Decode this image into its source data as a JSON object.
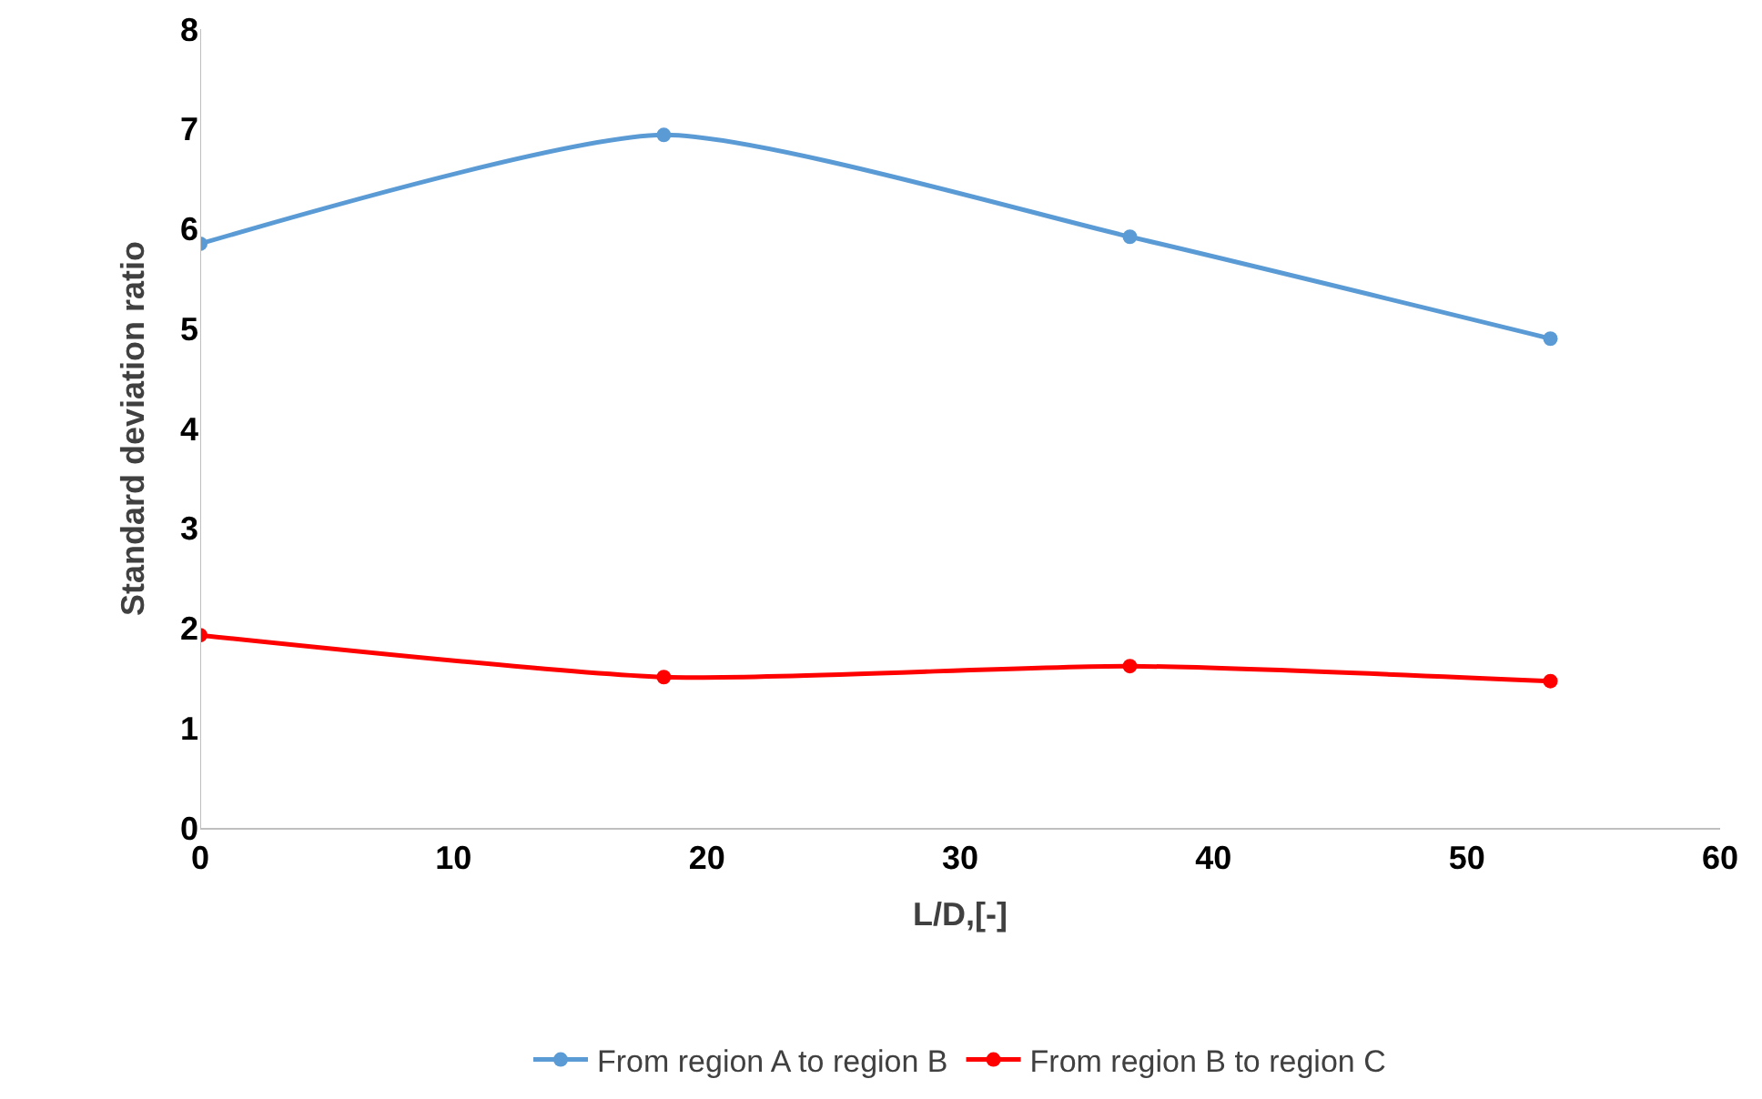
{
  "chart_data": {
    "type": "line",
    "xlabel": "L/D,[-]",
    "ylabel": "Standard deviation ratio",
    "x": [
      0,
      18.3,
      36.7,
      53.3
    ],
    "series": [
      {
        "name": "From region A to region B",
        "color": "#5b9bd5",
        "values": [
          5.85,
          6.94,
          5.92,
          4.9
        ]
      },
      {
        "name": "From region B to region C",
        "color": "#ff0000",
        "values": [
          1.93,
          1.51,
          1.62,
          1.47
        ]
      }
    ],
    "xlim": [
      0,
      60
    ],
    "xticks": [
      0,
      10,
      20,
      30,
      40,
      50,
      60
    ],
    "ylim": [
      0,
      8
    ],
    "yticks": [
      0,
      1,
      2,
      3,
      4,
      5,
      6,
      7,
      8
    ],
    "legend": "bottom",
    "marker": "circle",
    "line_style": "solid"
  }
}
